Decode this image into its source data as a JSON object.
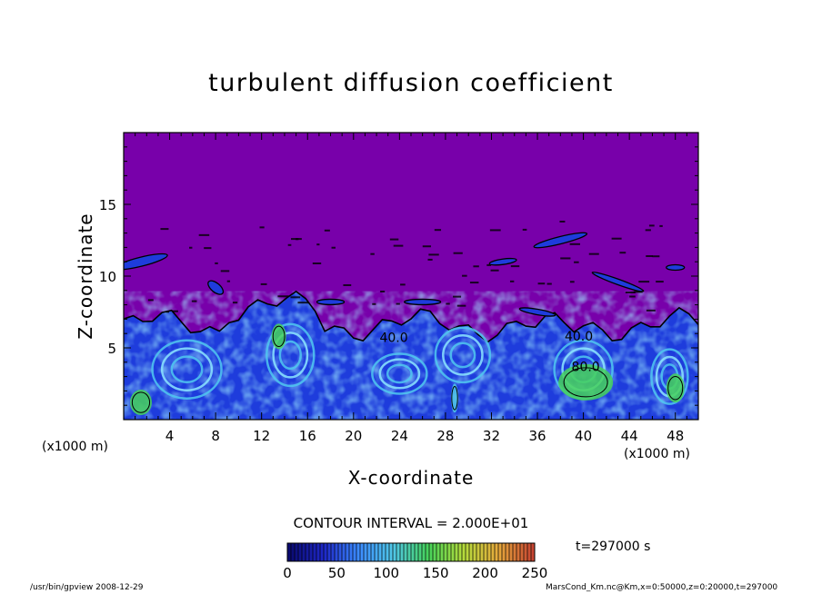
{
  "chart_data": {
    "type": "heatmap",
    "title": "turbulent diffusion coefficient",
    "xlabel": "X-coordinate",
    "ylabel": "Z-coordinate",
    "x_unit": "(x1000 m)",
    "xlim": [
      0,
      50
    ],
    "ylim": [
      0,
      20
    ],
    "x_ticks": [
      4,
      8,
      12,
      16,
      20,
      24,
      28,
      32,
      36,
      40,
      44,
      48
    ],
    "y_ticks": [
      5,
      10,
      15
    ],
    "contour_interval": "CONTOUR INTERVAL = 2.000E+01",
    "contour_labels": [
      {
        "text": "40.0",
        "x": 23.5,
        "z": 5.4
      },
      {
        "text": "40.0",
        "x": 39.6,
        "z": 5.5
      },
      {
        "text": "80.0",
        "x": 40.2,
        "z": 3.4
      }
    ],
    "colorbar": {
      "min": 0,
      "max": 250,
      "ticks": [
        0,
        50,
        100,
        150,
        200,
        250
      ],
      "colors": [
        "#0a0a70",
        "#1e28c8",
        "#3c8cff",
        "#50c8e6",
        "#46d25a",
        "#b4dc3c",
        "#e6aa3c",
        "#c84632"
      ]
    },
    "time_label": "t=297000  s",
    "background_color": "#7800aa",
    "turbulent_color": "#1e3cdc"
  },
  "footer": {
    "left": "/usr/bin/gpview   2008-12-29",
    "right": "MarsCond_Km.nc@Km,x=0:50000,z=0:20000,t=297000"
  }
}
